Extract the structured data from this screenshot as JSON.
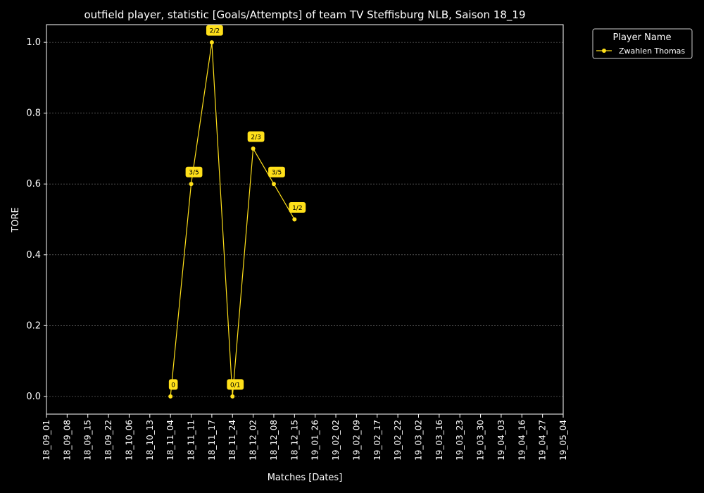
{
  "chart_data": {
    "type": "line",
    "title": "outfield player, statistic [Goals/Attempts] of team TV Steffisburg NLB, Saison 18_19",
    "xlabel": "Matches [Dates]",
    "ylabel": "TORE",
    "ylim": [
      -0.05,
      1.05
    ],
    "y_ticks": [
      0.0,
      0.2,
      0.4,
      0.6,
      0.8,
      1.0
    ],
    "y_tick_labels": [
      "0.0",
      "0.2",
      "0.4",
      "0.6",
      "0.8",
      "1.0"
    ],
    "grid": true,
    "categories": [
      "18_09_01",
      "18_09_08",
      "18_09_15",
      "18_09_22",
      "18_10_06",
      "18_10_13",
      "18_11_04",
      "18_11_11",
      "18_11_17",
      "18_11_24",
      "18_12_02",
      "18_12_08",
      "18_12_15",
      "19_01_26",
      "19_02_02",
      "19_02_09",
      "19_02_17",
      "19_02_22",
      "19_03_02",
      "19_03_16",
      "19_03_23",
      "19_03_30",
      "19_04_03",
      "19_04_16",
      "19_04_27",
      "19_05_04"
    ],
    "legend": {
      "title": "Player Name",
      "position": "outside-top-right"
    },
    "series": [
      {
        "name": "Zwahlen Thomas",
        "color": "#ffe01a",
        "x": [
          "18_11_04",
          "18_11_11",
          "18_11_17",
          "18_11_24",
          "18_12_02",
          "18_12_08",
          "18_12_15"
        ],
        "values": [
          0.0,
          0.6,
          1.0,
          0.0,
          0.7,
          0.6,
          0.5
        ],
        "labels": [
          "0",
          "3/5",
          "2/2",
          "0/1",
          "2/3",
          "3/5",
          "1/2"
        ]
      }
    ]
  }
}
